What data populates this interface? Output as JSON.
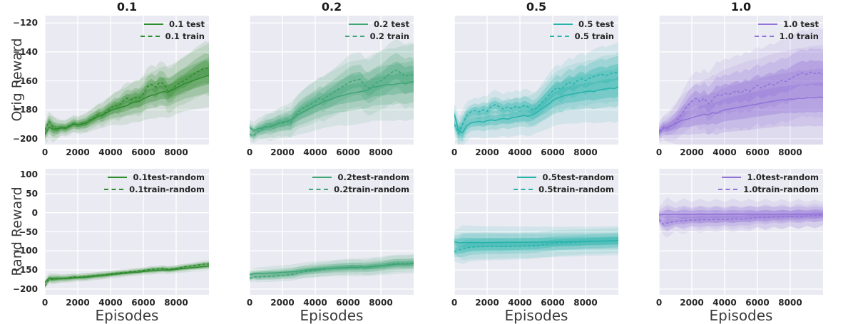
{
  "figure": {
    "background": "#ffffff",
    "axes_background": "#eaeaf2",
    "grid_color": "#ffffff",
    "tick_color": "#262626",
    "label_color": "#3b3b3b"
  },
  "axes": {
    "xlabel": "Episodes",
    "xlim": [
      0,
      10000
    ],
    "x_ticks": [
      0,
      2000,
      4000,
      6000,
      8000
    ],
    "x_tick_labels": [
      "0",
      "2000",
      "4000",
      "6000",
      "8000"
    ],
    "rows": [
      {
        "ylabel": "Orig Reward",
        "ylim": [
          -204,
          -115
        ],
        "y_ticks": [
          -120,
          -140,
          -160,
          -180,
          -200
        ],
        "y_tick_labels": [
          "−120",
          "−140",
          "−160",
          "−180",
          "−200"
        ]
      },
      {
        "ylabel": "Rand Reward",
        "ylim": [
          -215,
          115
        ],
        "y_ticks": [
          100,
          50,
          0,
          -50,
          -100,
          -150,
          -200
        ],
        "y_tick_labels": [
          "100",
          "50",
          "0",
          "−50",
          "−100",
          "−150",
          "−200"
        ]
      }
    ]
  },
  "chart_data": [
    {
      "type": "line",
      "title": "0.1",
      "row": 0,
      "col": 0,
      "color": "#2e8b2e",
      "x_start": 0,
      "x_step": 250,
      "band_x_step": 500,
      "series": [
        {
          "name": "0.1 test",
          "style": "solid",
          "values": [
            -197,
            -192,
            -193.5,
            -193,
            -192.5,
            -192.8,
            -191.5,
            -189.5,
            -190.5,
            -190,
            -189,
            -187.5,
            -186,
            -184.5,
            -183.5,
            -182,
            -180.5,
            -179.5,
            -178.5,
            -178,
            -177,
            -175.5,
            -174.5,
            -174,
            -172.5,
            -171,
            -170,
            -169.5,
            -168,
            -167.5,
            -167.8,
            -166.5,
            -165,
            -163.5,
            -162,
            -161,
            -160,
            -159,
            -158,
            -157,
            -156
          ]
        },
        {
          "name": "0.1 train",
          "style": "dashed",
          "values": [
            -194,
            -188,
            -192,
            -193.5,
            -192,
            -192.5,
            -191,
            -190,
            -190.5,
            -189.5,
            -189.5,
            -187,
            -185.5,
            -183,
            -184,
            -181,
            -179,
            -177,
            -177.5,
            -174,
            -172,
            -173,
            -171.5,
            -172,
            -169,
            -164,
            -162.5,
            -164.5,
            -161,
            -162,
            -167,
            -166,
            -163,
            -161,
            -160,
            -158,
            -156,
            -154,
            -152.5,
            -151,
            -152
          ]
        }
      ],
      "band_halfwidth": [
        7,
        9,
        5.5,
        6,
        6,
        7,
        8,
        9,
        10,
        12,
        13,
        14,
        15,
        16,
        17,
        18,
        18,
        19,
        20,
        21,
        22
      ]
    },
    {
      "type": "line",
      "title": "0.2",
      "row": 0,
      "col": 1,
      "color": "#3ea575",
      "x_start": 0,
      "x_step": 250,
      "band_x_step": 500,
      "series": [
        {
          "name": "0.2 test",
          "style": "solid",
          "values": [
            -192,
            -194.5,
            -193,
            -192.5,
            -191.5,
            -192,
            -190.5,
            -189.5,
            -188.5,
            -188,
            -187,
            -185,
            -183,
            -181.5,
            -180,
            -178.5,
            -177,
            -176,
            -174.5,
            -173.5,
            -172.5,
            -171.5,
            -170.5,
            -170,
            -169,
            -168.5,
            -168,
            -167.5,
            -167,
            -166,
            -164.5,
            -164,
            -163.5,
            -163,
            -162.5,
            -162.8,
            -162,
            -161.5,
            -161.8,
            -161,
            -160.5
          ]
        },
        {
          "name": "0.2 train",
          "style": "dashed",
          "values": [
            -197,
            -198,
            -195,
            -193.5,
            -192,
            -190.5,
            -191,
            -189,
            -189.5,
            -188,
            -189,
            -184,
            -181,
            -179,
            -177.5,
            -176,
            -174.5,
            -172,
            -173,
            -170.5,
            -169,
            -167,
            -165,
            -163.5,
            -161.5,
            -160,
            -159.5,
            -159,
            -163,
            -165,
            -163.5,
            -161,
            -160,
            -158,
            -155.5,
            -153.5,
            -152.5,
            -155,
            -157,
            -155.5,
            -156.5
          ]
        }
      ],
      "band_halfwidth": [
        5,
        7,
        9,
        10,
        11,
        12,
        14,
        16,
        17,
        18,
        19,
        20,
        22,
        22,
        22,
        23,
        24,
        25,
        25,
        26,
        26
      ]
    },
    {
      "type": "line",
      "title": "0.5",
      "row": 0,
      "col": 2,
      "color": "#26b3ab",
      "x_start": 0,
      "x_step": 250,
      "band_x_step": 500,
      "series": [
        {
          "name": "0.5 test",
          "style": "solid",
          "values": [
            -183,
            -194,
            -196,
            -191,
            -189,
            -188.5,
            -188,
            -188.5,
            -187.5,
            -187,
            -187.5,
            -186.5,
            -186,
            -186.5,
            -185.5,
            -185,
            -184.5,
            -184,
            -184.5,
            -183.5,
            -182,
            -180,
            -178,
            -176,
            -173.5,
            -172,
            -171,
            -170,
            -169.5,
            -169,
            -168.5,
            -168,
            -167.5,
            -167,
            -167.5,
            -166.5,
            -166,
            -165.5,
            -165,
            -165.5,
            -164
          ]
        },
        {
          "name": "0.5 train",
          "style": "dashed",
          "values": [
            -190,
            -196,
            -190,
            -184,
            -181.5,
            -180.5,
            -181.5,
            -180,
            -181,
            -177.5,
            -176.5,
            -178,
            -179.5,
            -178,
            -179,
            -177.5,
            -178.5,
            -177,
            -178,
            -180,
            -179,
            -176,
            -173,
            -170,
            -167,
            -164.5,
            -166,
            -163,
            -161,
            -162.5,
            -160,
            -158.5,
            -160,
            -158,
            -157,
            -156,
            -155.5,
            -156.5,
            -155,
            -154.5,
            -154
          ]
        }
      ],
      "band_halfwidth": [
        8,
        12,
        10,
        11,
        12,
        12,
        12,
        13,
        13,
        14,
        14,
        16,
        18,
        19,
        20,
        21,
        21,
        22,
        23,
        23,
        24
      ]
    },
    {
      "type": "line",
      "title": "1.0",
      "row": 0,
      "col": 3,
      "color": "#9273d8",
      "x_start": 0,
      "x_step": 250,
      "band_x_step": 500,
      "series": [
        {
          "name": "1.0 test",
          "style": "solid",
          "values": [
            -196,
            -193,
            -192,
            -191,
            -189.5,
            -188,
            -187,
            -186.5,
            -185.5,
            -184.5,
            -184,
            -183,
            -183.5,
            -182,
            -182.5,
            -181,
            -180,
            -179.5,
            -179,
            -178.5,
            -178,
            -177.5,
            -177,
            -176.5,
            -176,
            -175.5,
            -175,
            -174.5,
            -174,
            -173.5,
            -173,
            -173.2,
            -172.5,
            -172.8,
            -172,
            -172.3,
            -171.8,
            -171.5,
            -171.8,
            -171.2,
            -171.5
          ]
        },
        {
          "name": "1.0 train",
          "style": "dashed",
          "values": [
            -195,
            -192,
            -193,
            -191,
            -189,
            -185,
            -181,
            -177,
            -174,
            -172,
            -174.5,
            -172,
            -176,
            -173.5,
            -169.5,
            -170.5,
            -168.5,
            -169.5,
            -168,
            -167,
            -168.5,
            -166,
            -167.5,
            -165,
            -163,
            -165,
            -163.5,
            -162,
            -163,
            -161,
            -159.5,
            -160.5,
            -158.5,
            -157,
            -155.5,
            -154.5,
            -155.5,
            -154,
            -155,
            -154.5,
            -155.5
          ]
        }
      ],
      "band_halfwidth": [
        7,
        10,
        14,
        18,
        21,
        23,
        25,
        27,
        28,
        29,
        30,
        31,
        31,
        32,
        33,
        33,
        34,
        35,
        35,
        36,
        36
      ]
    },
    {
      "type": "line",
      "title": "",
      "row": 1,
      "col": 0,
      "color": "#2e8b2e",
      "x_start": 0,
      "x_step": 250,
      "band_x_step": 500,
      "series": [
        {
          "name": "0.1test-random",
          "style": "solid",
          "values": [
            -183,
            -171,
            -173,
            -172,
            -172.5,
            -171.5,
            -172,
            -171,
            -170,
            -169.5,
            -169,
            -168,
            -166.5,
            -165.5,
            -164.5,
            -163.5,
            -162,
            -161,
            -160,
            -159,
            -158,
            -157,
            -156,
            -155.5,
            -154,
            -153,
            -152,
            -151.5,
            -150.5,
            -150,
            -150.5,
            -149.5,
            -148,
            -147,
            -146,
            -145,
            -144,
            -143,
            -142,
            -141,
            -140
          ]
        },
        {
          "name": "0.1train-random",
          "style": "dashed",
          "values": [
            -192,
            -175,
            -174,
            -173,
            -172,
            -172.5,
            -170,
            -168,
            -169,
            -168,
            -167.5,
            -166,
            -165,
            -164,
            -163.5,
            -162,
            -160.5,
            -159,
            -158,
            -156.5,
            -156,
            -154,
            -153.5,
            -152,
            -151,
            -149.5,
            -148,
            -147.5,
            -146.5,
            -146,
            -148,
            -147,
            -146,
            -144,
            -142,
            -140.5,
            -139,
            -137.5,
            -136,
            -134.5,
            -134
          ]
        }
      ],
      "band_halfwidth": [
        10,
        14,
        11,
        11,
        10,
        11,
        10,
        10.5,
        9.5,
        10,
        9,
        9.5,
        9,
        10,
        9.5,
        10,
        10,
        10.5,
        10,
        11,
        11
      ]
    },
    {
      "type": "line",
      "title": "",
      "row": 1,
      "col": 1,
      "color": "#3ea575",
      "x_start": 0,
      "x_step": 250,
      "band_x_step": 500,
      "series": [
        {
          "name": "0.2test-random",
          "style": "solid",
          "values": [
            -162,
            -160,
            -159.5,
            -159,
            -158.5,
            -158,
            -157.5,
            -157,
            -156,
            -155.5,
            -155,
            -154,
            -152.5,
            -151,
            -150,
            -149.5,
            -148.5,
            -147.5,
            -147,
            -146.5,
            -146,
            -145,
            -144.5,
            -144,
            -143.5,
            -143,
            -143.5,
            -142.5,
            -143,
            -142,
            -141,
            -140,
            -139,
            -138,
            -137,
            -136,
            -135,
            -134.5,
            -134.8,
            -134,
            -133.5
          ]
        },
        {
          "name": "0.2train-random",
          "style": "dashed",
          "values": [
            -172,
            -168,
            -169,
            -167.5,
            -167,
            -166.5,
            -166,
            -165,
            -164,
            -163,
            -162,
            -160,
            -157,
            -155,
            -153.5,
            -152,
            -150.5,
            -149.5,
            -148,
            -147,
            -145.5,
            -144.5,
            -144,
            -143.5,
            -142.5,
            -142,
            -142.5,
            -142,
            -143.5,
            -143,
            -142,
            -140.5,
            -139.5,
            -137.5,
            -135.5,
            -134,
            -133,
            -133.5,
            -133,
            -132.5,
            -132
          ]
        }
      ],
      "band_halfwidth": [
        12,
        16,
        17,
        18,
        18,
        19,
        20,
        20,
        21,
        21,
        21,
        22,
        23,
        23,
        23,
        24,
        24,
        25,
        25,
        25,
        25
      ]
    },
    {
      "type": "line",
      "title": "",
      "row": 1,
      "col": 2,
      "color": "#26b3ab",
      "x_start": 0,
      "x_step": 250,
      "band_x_step": 500,
      "series": [
        {
          "name": "0.5test-random",
          "style": "solid",
          "values": [
            -76,
            -79,
            -78.5,
            -78.5,
            -78,
            -78.2,
            -78,
            -78.3,
            -78,
            -77.8,
            -78,
            -77.6,
            -77.8,
            -77.5,
            -77.6,
            -77.4,
            -77.5,
            -77.2,
            -77.4,
            -77,
            -77.2,
            -76.8,
            -77,
            -76.5,
            -76.3,
            -76.5,
            -76,
            -76.2,
            -75.8,
            -75.5,
            -75.6,
            -75.2,
            -75,
            -74.8,
            -74.5,
            -74.6,
            -74.2,
            -74,
            -73.8,
            -73.5,
            -73
          ]
        },
        {
          "name": "0.5train-random",
          "style": "dashed",
          "values": [
            -102,
            -98,
            -95,
            -92,
            -90,
            -89.5,
            -89,
            -88.5,
            -88,
            -88.5,
            -88,
            -89,
            -88.5,
            -88,
            -88.5,
            -87.5,
            -88,
            -86.5,
            -87,
            -86,
            -86.5,
            -84.5,
            -83,
            -82,
            -80.5,
            -79.5,
            -79,
            -78.5,
            -78,
            -77.5,
            -77,
            -76.5,
            -76,
            -75.5,
            -75,
            -74.8,
            -74.4,
            -74,
            -73.6,
            -73,
            -72.5
          ]
        }
      ],
      "band_halfwidth": [
        30,
        46,
        44,
        43,
        43,
        42,
        42,
        41,
        41,
        41,
        40,
        40,
        40,
        39,
        39,
        39,
        38,
        38,
        38,
        38,
        38
      ]
    },
    {
      "type": "line",
      "title": "",
      "row": 1,
      "col": 3,
      "color": "#9273d8",
      "x_start": 0,
      "x_step": 250,
      "band_x_step": 500,
      "series": [
        {
          "name": "1.0test-random",
          "style": "solid",
          "values": [
            -6,
            -4.5,
            -4.8,
            -4.5,
            -4.6,
            -4.4,
            -4.5,
            -4.3,
            -4.5,
            -4.2,
            -4.4,
            -4.2,
            -4.3,
            -4.1,
            -4.3,
            -4,
            -4.2,
            -4,
            -4.1,
            -3.9,
            -4.1,
            -3.9,
            -4,
            -3.8,
            -4,
            -3.8,
            -3.9,
            -3.7,
            -3.9,
            -3.7,
            -3.8,
            -3.7,
            -3.8,
            -3.6,
            -3.8,
            -3.6,
            -3.7,
            -3.6,
            -3.7,
            -3.5,
            -3.6
          ]
        },
        {
          "name": "1.0train-random",
          "style": "dashed",
          "values": [
            -18,
            -30,
            -27,
            -25,
            -23.5,
            -22,
            -21,
            -20,
            -19.5,
            -19,
            -18.5,
            -18,
            -18.5,
            -18,
            -17.5,
            -17.8,
            -17.2,
            -17.5,
            -17,
            -16.5,
            -16.8,
            -16,
            -15,
            -13.5,
            -12.5,
            -12,
            -12.5,
            -11.5,
            -11,
            -11.5,
            -10.5,
            -10,
            -10.5,
            -9.5,
            -9,
            -9.5,
            -8.5,
            -8,
            -7.5,
            -7,
            -6.5
          ]
        }
      ],
      "band_halfwidth": [
        20,
        45,
        30,
        42,
        32,
        41,
        33,
        40,
        32,
        41,
        33,
        40,
        32,
        40,
        32,
        39,
        31,
        39,
        31,
        38,
        31
      ]
    }
  ]
}
